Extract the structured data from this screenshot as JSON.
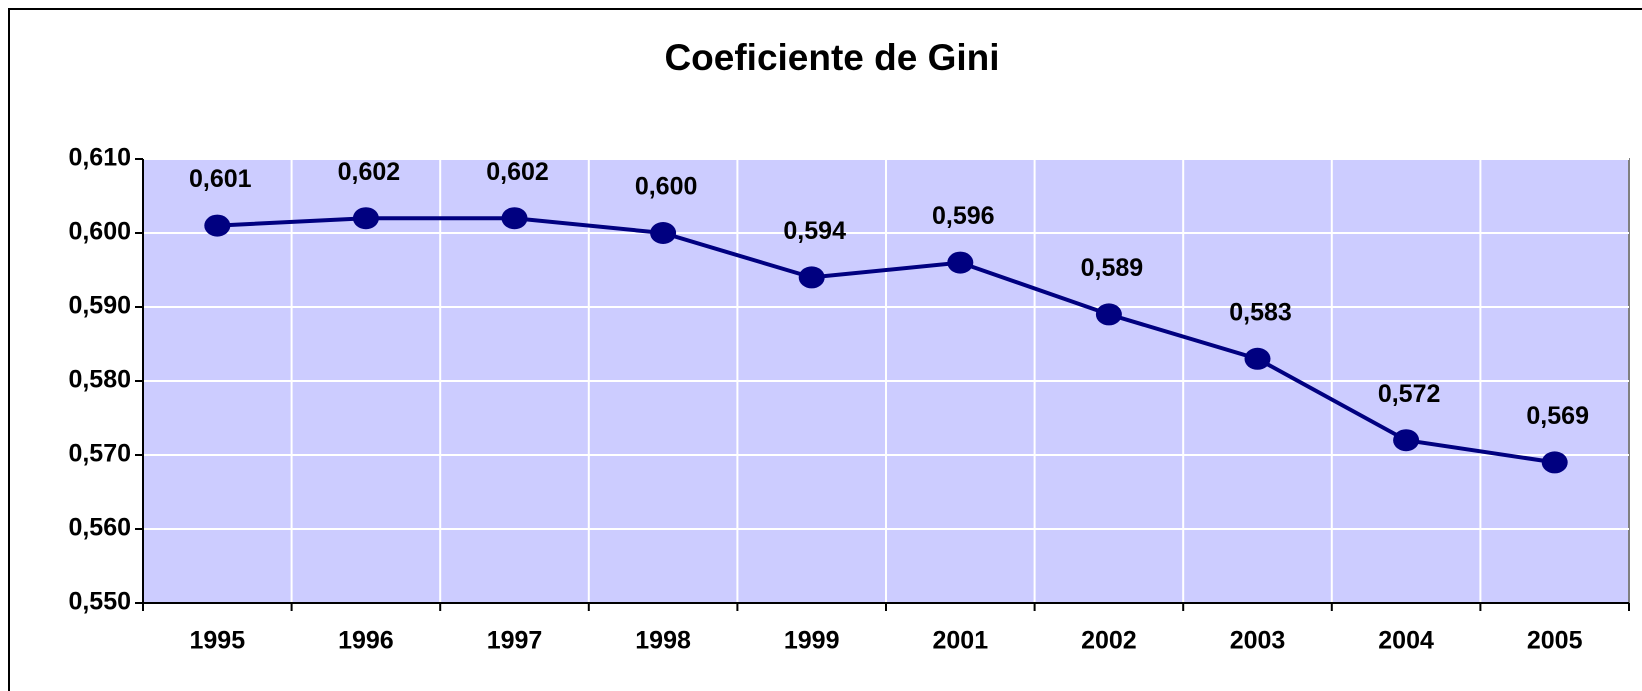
{
  "chart_data": {
    "type": "line",
    "title": "Coeficiente de Gini",
    "categories": [
      "1995",
      "1996",
      "1997",
      "1998",
      "1999",
      "2001",
      "2002",
      "2003",
      "2004",
      "2005"
    ],
    "series": [
      {
        "name": "Coeficiente de Gini",
        "color": "#000080",
        "values": [
          0.601,
          0.602,
          0.602,
          0.6,
          0.594,
          0.596,
          0.589,
          0.583,
          0.572,
          0.569
        ],
        "value_labels": [
          "0,601",
          "0,602",
          "0,602",
          "0,600",
          "0,594",
          "0,596",
          "0,589",
          "0,583",
          "0,572",
          "0,569"
        ]
      }
    ],
    "ylim": [
      0.55,
      0.61
    ],
    "yticks": [
      {
        "value": 0.55,
        "label": "0,550"
      },
      {
        "value": 0.56,
        "label": "0,560"
      },
      {
        "value": 0.57,
        "label": "0,570"
      },
      {
        "value": 0.58,
        "label": "0,580"
      },
      {
        "value": 0.59,
        "label": "0,590"
      },
      {
        "value": 0.6,
        "label": "0,600"
      },
      {
        "value": 0.61,
        "label": "0,610"
      }
    ],
    "grid": true,
    "background": "#ccccff"
  }
}
